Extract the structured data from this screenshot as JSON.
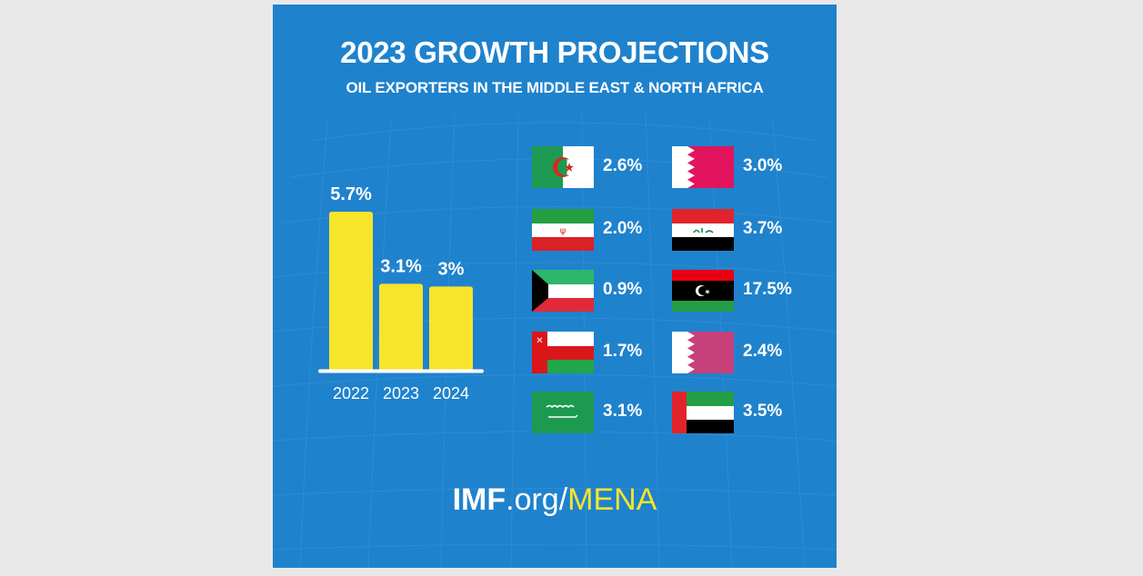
{
  "header": {
    "title": "2023 GROWTH PROJECTIONS",
    "subtitle": "OIL EXPORTERS IN THE MIDDLE EAST & NORTH AFRICA"
  },
  "chart_data": {
    "type": "bar",
    "categories": [
      "2022",
      "2023",
      "2024"
    ],
    "values": [
      5.7,
      3.1,
      3.0
    ],
    "data_labels": [
      "5.7%",
      "3.1%",
      "3%"
    ],
    "title": "",
    "xlabel": "",
    "ylabel": "",
    "ylim": [
      0,
      5.7
    ],
    "grid": false,
    "bar_color": "#f7e52b",
    "axis_color": "#ffffff"
  },
  "countries": {
    "left": [
      {
        "flag": "algeria-flag",
        "value": "2.6%"
      },
      {
        "flag": "iran-flag",
        "value": "2.0%"
      },
      {
        "flag": "kuwait-flag",
        "value": "0.9%"
      },
      {
        "flag": "oman-flag",
        "value": "1.7%"
      },
      {
        "flag": "saudi-arabia-flag",
        "value": "3.1%"
      }
    ],
    "right": [
      {
        "flag": "bahrain-flag",
        "value": "3.0%"
      },
      {
        "flag": "iraq-flag",
        "value": "3.7%"
      },
      {
        "flag": "libya-flag",
        "value": "17.5%"
      },
      {
        "flag": "qatar-flag",
        "value": "2.4%"
      },
      {
        "flag": "uae-flag",
        "value": "3.5%"
      }
    ]
  },
  "footer": {
    "link_imf": "IMF",
    "link_org": ".org/",
    "link_mena": "MENA"
  },
  "colors": {
    "background": "#1f82cd",
    "page_background": "#e8e8e8",
    "accent_yellow": "#f7e52b",
    "text": "#ffffff"
  }
}
